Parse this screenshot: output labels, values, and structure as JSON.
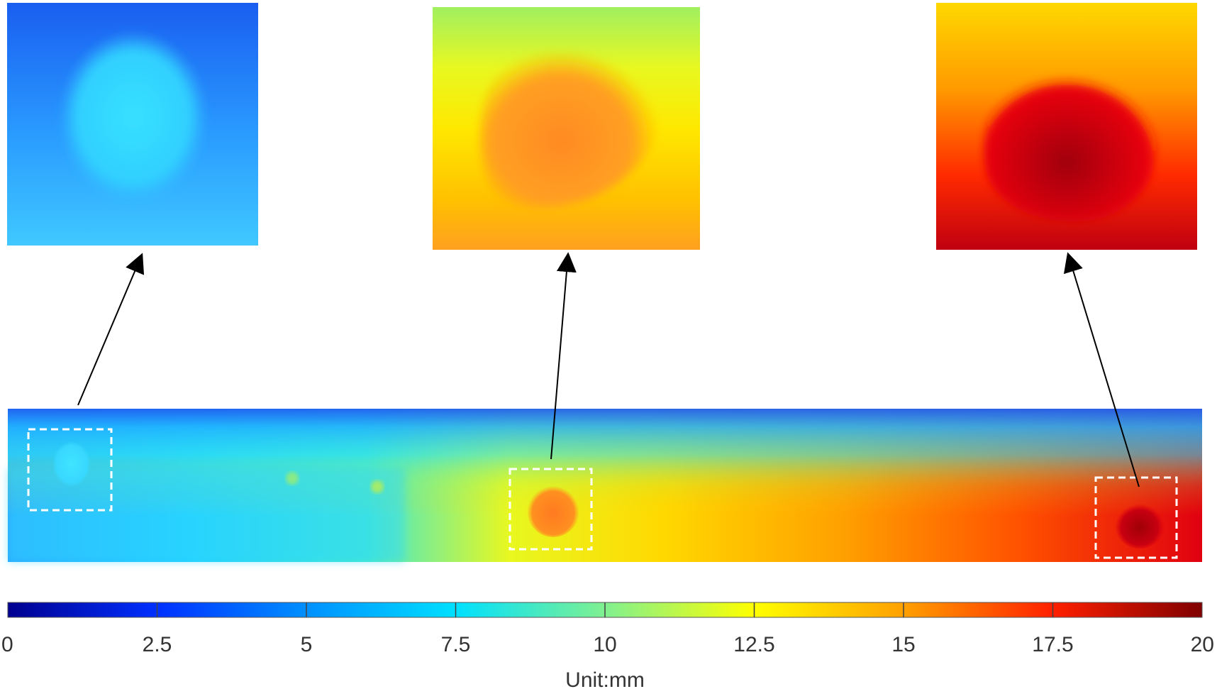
{
  "colorbar": {
    "ticks": [
      "0",
      "2.5",
      "5",
      "7.5",
      "10",
      "12.5",
      "15",
      "17.5",
      "20"
    ],
    "unit_label": "Unit:mm",
    "colormap": [
      "#00008f",
      "#0044ff",
      "#00ccff",
      "#22e8c8",
      "#a8f060",
      "#ffff00",
      "#ffa000",
      "#ff2000",
      "#800000"
    ]
  },
  "insets": [
    {
      "label": "depth-zoom-left",
      "background": [
        "#1a66f0",
        "#3ec6ff"
      ],
      "defect_color": "#38e6ff"
    },
    {
      "label": "depth-zoom-center",
      "background": [
        "#a0f060",
        "#ffa020"
      ],
      "defect_color": "#ff9a20"
    },
    {
      "label": "depth-zoom-right",
      "background": [
        "#ffd000",
        "#c00010"
      ],
      "defect_color": "#c00008"
    }
  ]
}
